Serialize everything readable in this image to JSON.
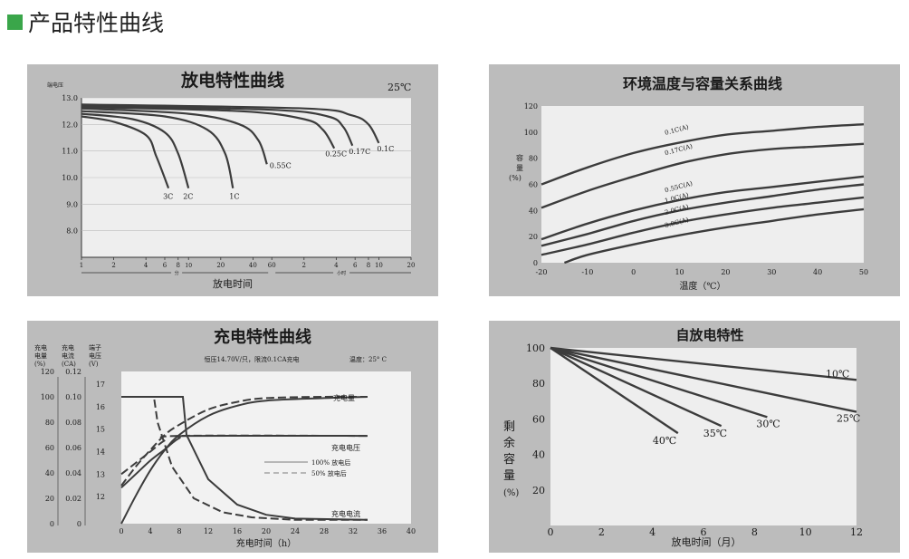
{
  "page_title": "产品特性曲线",
  "colors": {
    "accent": "#3aa64a",
    "panel": "#bcbcbc",
    "plot_area": "#eeeeee",
    "curve": "#3c3c3c"
  },
  "chart_data": [
    {
      "id": "discharge",
      "type": "line",
      "title": "放电特性曲线",
      "temperature": "25℃",
      "ylabel": "端电压",
      "xlabel": "放电时间",
      "x_units": [
        "分",
        "小时"
      ],
      "x_tick_labels": [
        "1",
        "2",
        "4",
        "6",
        "8",
        "10",
        "20",
        "40",
        "60",
        "2",
        "4",
        "6",
        "8",
        "10",
        "20"
      ],
      "y_ticks": [
        8.0,
        9.0,
        10.0,
        11.0,
        12.0,
        13.0
      ],
      "y_tick_labels": [
        "8.0",
        "9.0",
        "10.0",
        "11.0",
        "12.0",
        "13.0"
      ],
      "ylim": [
        7.0,
        13.0
      ],
      "x_scale": "log (time in minutes, 1 min to 20 h)",
      "series": [
        {
          "name": "3C",
          "x_min": [
            1,
            2,
            4,
            5,
            6.5
          ],
          "y": [
            12.3,
            12.1,
            11.6,
            10.8,
            9.6
          ]
        },
        {
          "name": "2C",
          "x_min": [
            1,
            3,
            6,
            8,
            10
          ],
          "y": [
            12.4,
            12.2,
            11.7,
            10.9,
            9.6
          ]
        },
        {
          "name": "1C",
          "x_min": [
            1,
            6,
            15,
            22,
            26
          ],
          "y": [
            12.5,
            12.3,
            11.8,
            10.9,
            9.6
          ]
        },
        {
          "name": "0.55C",
          "x_min": [
            1,
            10,
            30,
            45,
            54
          ],
          "y": [
            12.6,
            12.4,
            12.0,
            11.4,
            10.5
          ]
        },
        {
          "name": "0.25C",
          "x_min": [
            1,
            30,
            120,
            180,
            230
          ],
          "y": [
            12.65,
            12.5,
            12.2,
            11.8,
            11.1
          ]
        },
        {
          "name": "0.17C",
          "x_min": [
            1,
            60,
            200,
            280,
            340
          ],
          "y": [
            12.7,
            12.55,
            12.3,
            11.9,
            11.2
          ]
        },
        {
          "name": "0.1C",
          "x_min": [
            1,
            120,
            330,
            480,
            600
          ],
          "y": [
            12.75,
            12.6,
            12.35,
            12.0,
            11.3
          ]
        }
      ]
    },
    {
      "id": "temperature",
      "type": "line",
      "title": "环境温度与容量关系曲线",
      "xlabel": "温度（℃）",
      "ylabel": "容量（%）",
      "ylabel_chars": [
        "容",
        "量",
        "(%)"
      ],
      "x_ticks": [
        -20,
        -10,
        0,
        10,
        20,
        30,
        40,
        50
      ],
      "y_ticks": [
        0,
        20,
        40,
        60,
        80,
        100,
        120
      ],
      "xlim": [
        -20,
        50
      ],
      "ylim": [
        0,
        120
      ],
      "series": [
        {
          "name": "0.1C(A)",
          "x": [
            -20,
            -10,
            0,
            10,
            20,
            30,
            40,
            50
          ],
          "y": [
            60,
            73,
            84,
            92,
            98,
            101,
            104,
            106
          ]
        },
        {
          "name": "0.17C(A)",
          "x": [
            -20,
            -10,
            0,
            10,
            20,
            30,
            40,
            50
          ],
          "y": [
            42,
            55,
            66,
            76,
            83,
            87,
            89,
            91
          ]
        },
        {
          "name": "0.55C(A)",
          "x": [
            -20,
            -10,
            0,
            10,
            20,
            30,
            40,
            50
          ],
          "y": [
            18,
            30,
            40,
            48,
            54,
            58,
            62,
            66
          ]
        },
        {
          "name": "1.0C(A)",
          "x": [
            -20,
            -10,
            0,
            10,
            20,
            30,
            40,
            50
          ],
          "y": [
            13,
            22,
            32,
            40,
            46,
            51,
            56,
            60
          ]
        },
        {
          "name": "2.0C(A)",
          "x": [
            -20,
            -10,
            0,
            10,
            20,
            30,
            40,
            50
          ],
          "y": [
            6,
            14,
            23,
            31,
            37,
            42,
            46,
            50
          ]
        },
        {
          "name": "3.0C(A)",
          "x": [
            -15,
            -10,
            0,
            10,
            20,
            30,
            40,
            50
          ],
          "y": [
            0,
            6,
            14,
            21,
            27,
            32,
            37,
            41
          ]
        }
      ]
    },
    {
      "id": "charge",
      "type": "line",
      "title": "充电特性曲线",
      "subtitle": "恒压14.70V/只，限流0.1CA充电",
      "temperature_text": "温度：25° C",
      "xlabel": "充电时间（h）",
      "x_ticks": [
        0,
        4,
        8,
        12,
        16,
        20,
        24,
        28,
        32,
        36,
        40
      ],
      "xlim": [
        0,
        40
      ],
      "axes": [
        {
          "label": "充电电量(%)",
          "label_lines": [
            "充电",
            "电量",
            "(%)"
          ],
          "ticks": [
            "120",
            "100",
            "80",
            "60",
            "40",
            "20",
            "0"
          ]
        },
        {
          "label": "充电电流(CA)",
          "label_lines": [
            "充电",
            "电流",
            "(CA)"
          ],
          "ticks": [
            "0.12",
            "0.10",
            "0.08",
            "0.06",
            "0.04",
            "0.02",
            "0"
          ]
        },
        {
          "label": "端子电压(V)",
          "label_lines": [
            "端子",
            "电压",
            "(V)"
          ],
          "ticks": [
            "17",
            "16",
            "15",
            "14",
            "13",
            "12"
          ]
        }
      ],
      "curve_labels": [
        "充电量",
        "充电电压",
        "充电电流"
      ],
      "legend": [
        {
          "style": "solid",
          "label": "100% 放电后"
        },
        {
          "style": "dashed",
          "label": "50% 放电后"
        }
      ],
      "series": [
        {
          "name": "充电量(100% 放电后)",
          "unit": "%",
          "x": [
            0,
            2,
            4,
            6,
            8,
            12,
            16,
            20,
            28,
            34
          ],
          "y": [
            0,
            22,
            42,
            58,
            70,
            85,
            93,
            97,
            99,
            100
          ]
        },
        {
          "name": "充电量(50% 放电后)",
          "unit": "%",
          "x": [
            0,
            2,
            4,
            6,
            8,
            12,
            16,
            20,
            28,
            34
          ],
          "y": [
            30,
            45,
            58,
            70,
            78,
            90,
            96,
            99,
            100,
            100
          ]
        },
        {
          "name": "充电电压(100% 放电后)",
          "unit": "V",
          "x": [
            0,
            2,
            4,
            6,
            8,
            10,
            34
          ],
          "y": [
            12.4,
            13.0,
            13.6,
            14.1,
            14.6,
            14.7,
            14.7
          ]
        },
        {
          "name": "充电电压(50% 放电后)",
          "unit": "V",
          "x": [
            0,
            2,
            4,
            6,
            8,
            34
          ],
          "y": [
            13.0,
            13.5,
            14.0,
            14.5,
            14.7,
            14.7
          ]
        },
        {
          "name": "充电电流(100% 放电后)",
          "unit": "CA",
          "x": [
            0,
            8.5,
            9,
            12,
            16,
            20,
            24,
            34
          ],
          "y": [
            0.1,
            0.1,
            0.07,
            0.035,
            0.015,
            0.007,
            0.004,
            0.003
          ]
        },
        {
          "name": "充电电流(50% 放电后)",
          "unit": "CA",
          "x": [
            0,
            4.5,
            5,
            7,
            10,
            14,
            18,
            24,
            34
          ],
          "y": [
            0.1,
            0.1,
            0.08,
            0.045,
            0.02,
            0.009,
            0.005,
            0.003,
            0.003
          ]
        }
      ]
    },
    {
      "id": "self_discharge",
      "type": "line",
      "title": "自放电特性",
      "xlabel": "放电时间（月）",
      "ylabel": "剩余容量（%）",
      "ylabel_chars": [
        "剩",
        "余",
        "容",
        "量",
        "(%)"
      ],
      "x_ticks": [
        0,
        2,
        4,
        6,
        8,
        10,
        12
      ],
      "y_ticks": [
        20,
        40,
        60,
        80,
        100
      ],
      "xlim": [
        0,
        12
      ],
      "ylim": [
        0,
        100
      ],
      "series": [
        {
          "name": "10℃",
          "x": [
            0,
            12
          ],
          "y": [
            100,
            82
          ]
        },
        {
          "name": "25℃",
          "x": [
            0,
            12
          ],
          "y": [
            100,
            64
          ]
        },
        {
          "name": "30℃",
          "x": [
            0,
            8.5
          ],
          "y": [
            100,
            61
          ]
        },
        {
          "name": "35℃",
          "x": [
            0,
            6.7
          ],
          "y": [
            100,
            56
          ]
        },
        {
          "name": "40℃",
          "x": [
            0,
            5
          ],
          "y": [
            100,
            52
          ]
        }
      ]
    }
  ]
}
